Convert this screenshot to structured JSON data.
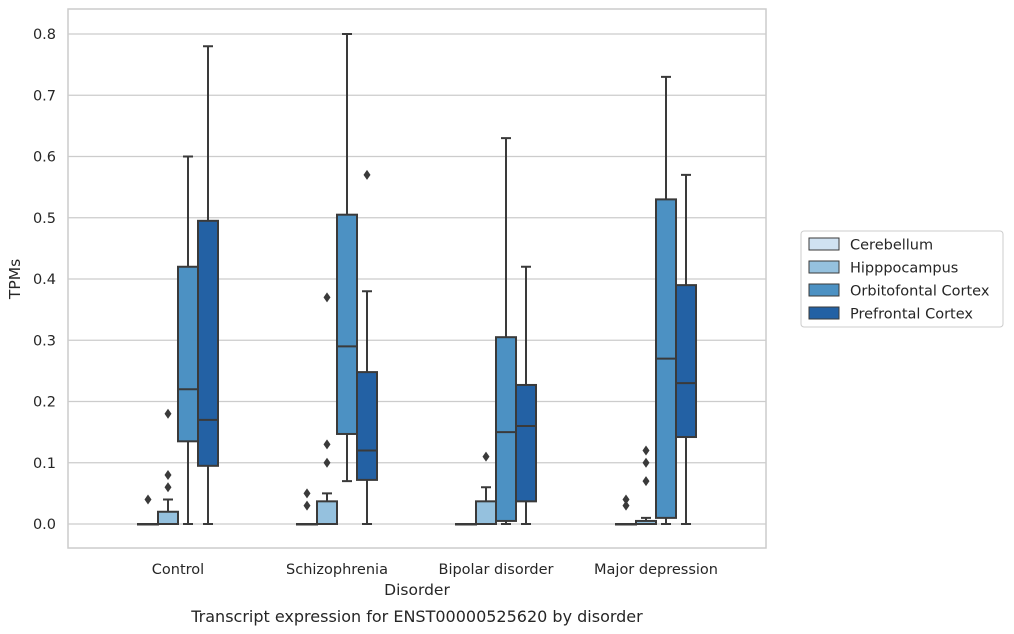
{
  "chart_data": {
    "type": "boxplot",
    "caption": "Transcript expression for ENST00000525620 by disorder",
    "xlabel": "Disorder",
    "ylabel": "TPMs",
    "ylim": [
      -0.04,
      0.84
    ],
    "yticks": [
      "0.0",
      "0.1",
      "0.2",
      "0.3",
      "0.4",
      "0.5",
      "0.6",
      "0.7",
      "0.8"
    ],
    "categories": [
      "Control",
      "Schizophrenia",
      "Bipolar disorder",
      "Major depression"
    ],
    "grid": "horizontal",
    "legend_position": "right",
    "colors": {
      "Cerebellum": "#d0e2f2",
      "Hipppocampus": "#95c1de",
      "Orbitofontal Cortex": "#4c91c3",
      "Prefrontal Cortex": "#2361a4",
      "edge": "#3a3a3a",
      "grid": "#cccccc",
      "frame": "#cccccc"
    },
    "series": [
      {
        "name": "Cerebellum",
        "boxes": [
          {
            "min": 0,
            "q1": 0,
            "median": 0,
            "q3": 0,
            "max": 0,
            "outliers": [
              0.04
            ]
          },
          {
            "min": 0,
            "q1": 0,
            "median": 0,
            "q3": 0,
            "max": 0,
            "outliers": [
              0.03,
              0.05
            ]
          },
          {
            "min": 0,
            "q1": 0,
            "median": 0,
            "q3": 0,
            "max": 0,
            "outliers": []
          },
          {
            "min": 0,
            "q1": 0,
            "median": 0,
            "q3": 0,
            "max": 0,
            "outliers": [
              0.03,
              0.04
            ]
          }
        ]
      },
      {
        "name": "Hipppocampus",
        "boxes": [
          {
            "min": 0,
            "q1": 0,
            "median": 0,
            "q3": 0.02,
            "max": 0.04,
            "outliers": [
              0.06,
              0.08,
              0.18
            ]
          },
          {
            "min": 0,
            "q1": 0,
            "median": 0,
            "q3": 0.037,
            "max": 0.05,
            "outliers": [
              0.1,
              0.13,
              0.37
            ]
          },
          {
            "min": 0,
            "q1": 0,
            "median": 0,
            "q3": 0.037,
            "max": 0.06,
            "outliers": [
              0.11
            ]
          },
          {
            "min": 0,
            "q1": 0,
            "median": 0,
            "q3": 0.005,
            "max": 0.01,
            "outliers": [
              0.07,
              0.1,
              0.12
            ]
          }
        ]
      },
      {
        "name": "Orbitofontal Cortex",
        "boxes": [
          {
            "min": 0,
            "q1": 0.135,
            "median": 0.22,
            "q3": 0.42,
            "max": 0.6,
            "outliers": []
          },
          {
            "min": 0.07,
            "q1": 0.147,
            "median": 0.29,
            "q3": 0.505,
            "max": 0.8,
            "outliers": []
          },
          {
            "min": 0,
            "q1": 0.005,
            "median": 0.15,
            "q3": 0.305,
            "max": 0.63,
            "outliers": []
          },
          {
            "min": 0,
            "q1": 0.01,
            "median": 0.27,
            "q3": 0.53,
            "max": 0.73,
            "outliers": []
          }
        ]
      },
      {
        "name": "Prefrontal Cortex",
        "boxes": [
          {
            "min": 0,
            "q1": 0.095,
            "median": 0.17,
            "q3": 0.495,
            "max": 0.78,
            "outliers": []
          },
          {
            "min": 0,
            "q1": 0.072,
            "median": 0.12,
            "q3": 0.248,
            "max": 0.38,
            "outliers": [
              0.57
            ]
          },
          {
            "min": 0,
            "q1": 0.037,
            "median": 0.16,
            "q3": 0.227,
            "max": 0.42,
            "outliers": []
          },
          {
            "min": 0,
            "q1": 0.142,
            "median": 0.23,
            "q3": 0.39,
            "max": 0.57,
            "outliers": []
          }
        ]
      }
    ]
  }
}
